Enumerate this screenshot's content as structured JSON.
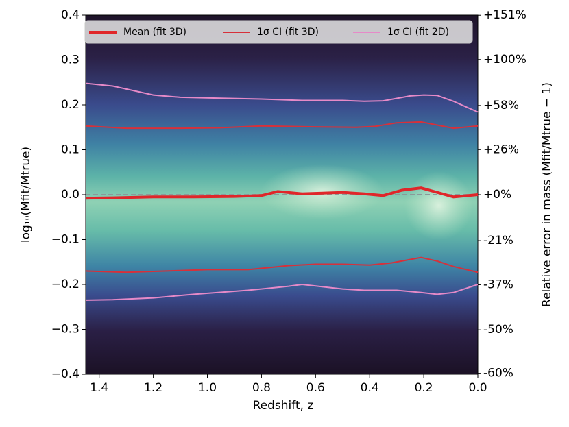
{
  "chart_data": {
    "type": "line",
    "x_label": "Redshift, z",
    "y_label": "log₁₀(Mfit/Mtrue)",
    "y2_label": "Relative error in mass (Mfit/Mtrue − 1)",
    "xlim": [
      1.45,
      0
    ],
    "xticks": [
      1.4,
      1.2,
      {
        "value": 1,
        "label": "1.0"
      },
      0.8,
      0.6,
      0.4,
      0.2,
      {
        "value": 0,
        "label": "0.0"
      }
    ],
    "ylim": [
      -0.4,
      0.4
    ],
    "yticks": [
      0.4,
      0.3,
      0.2,
      0.1,
      {
        "value": 0,
        "label": "0.0"
      },
      {
        "value": -0.1,
        "label": "−0.1"
      },
      {
        "value": -0.2,
        "label": "−0.2"
      },
      {
        "value": -0.3,
        "label": "−0.3"
      },
      {
        "value": -0.4,
        "label": "−0.4"
      }
    ],
    "y2ticks": [
      {
        "value": 151,
        "label": "+151%"
      },
      {
        "value": 100,
        "label": "+100%"
      },
      {
        "value": 58,
        "label": "+58%"
      },
      {
        "value": 26,
        "label": "+26%"
      },
      {
        "value": 0,
        "label": "+0%"
      },
      {
        "value": -21,
        "label": "-21%"
      },
      {
        "value": -37,
        "label": "-37%"
      },
      {
        "value": -50,
        "label": "-50%"
      },
      {
        "value": -60,
        "label": "-60%"
      }
    ],
    "reference_line": 0,
    "series": [
      {
        "name": "Mean (fit 3D)",
        "color": "#e0262a",
        "x": [
          1.45,
          1.35,
          1.2,
          1.05,
          0.9,
          0.8,
          0.74,
          0.65,
          0.5,
          0.42,
          0.35,
          0.28,
          0.21,
          0.15,
          0.09,
          0.0
        ],
        "values": [
          -0.008,
          -0.007,
          -0.005,
          -0.005,
          -0.004,
          -0.002,
          0.007,
          0.002,
          0.005,
          0.002,
          -0.002,
          0.01,
          0.015,
          0.005,
          -0.005,
          0.0
        ]
      },
      {
        "name": "1σ CI (fit 3D)",
        "color": "#d7303a",
        "x": [
          1.45,
          1.3,
          1.1,
          0.95,
          0.8,
          0.6,
          0.45,
          0.38,
          0.3,
          0.21,
          0.15,
          0.09,
          0.0
        ],
        "upper": [
          0.153,
          0.148,
          0.148,
          0.149,
          0.153,
          0.151,
          0.15,
          0.152,
          0.16,
          0.162,
          0.155,
          0.148,
          0.153
        ],
        "x_lower": [
          1.45,
          1.3,
          1.15,
          1.0,
          0.85,
          0.7,
          0.6,
          0.5,
          0.4,
          0.32,
          0.21,
          0.15,
          0.09,
          0.0
        ],
        "lower": [
          -0.17,
          -0.173,
          -0.17,
          -0.167,
          -0.167,
          -0.158,
          -0.155,
          -0.155,
          -0.157,
          -0.152,
          -0.14,
          -0.148,
          -0.16,
          -0.173
        ]
      },
      {
        "name": "1σ CI (fit 2D)",
        "color": "#e68ac8",
        "x": [
          1.45,
          1.35,
          1.2,
          1.1,
          0.95,
          0.8,
          0.65,
          0.5,
          0.42,
          0.35,
          0.25,
          0.2,
          0.15,
          0.09,
          0.0
        ],
        "upper": [
          0.248,
          0.242,
          0.222,
          0.217,
          0.215,
          0.213,
          0.21,
          0.21,
          0.208,
          0.209,
          0.22,
          0.222,
          0.221,
          0.208,
          0.184
        ],
        "x_lower": [
          1.45,
          1.35,
          1.2,
          1.05,
          0.85,
          0.7,
          0.65,
          0.5,
          0.42,
          0.3,
          0.21,
          0.15,
          0.09,
          0.0
        ],
        "lower": [
          -0.235,
          -0.234,
          -0.23,
          -0.222,
          -0.213,
          -0.204,
          -0.2,
          -0.21,
          -0.213,
          -0.213,
          -0.218,
          -0.222,
          -0.218,
          -0.2
        ]
      }
    ]
  }
}
